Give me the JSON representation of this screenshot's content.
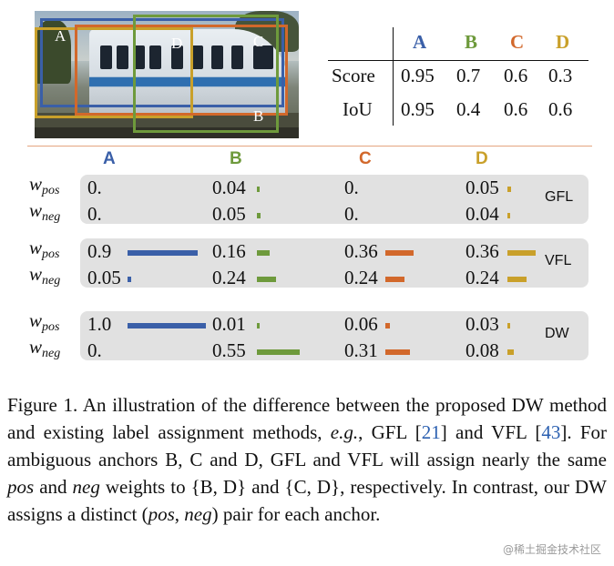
{
  "colors": {
    "A": "#3a5fa8",
    "B": "#6e9a3c",
    "C": "#d2682b",
    "D": "#c9a02a",
    "divider": "#e4a57f",
    "panel": "#e1e1e1",
    "ref": "#2a5fb0"
  },
  "anchors": [
    "A",
    "B",
    "C",
    "D"
  ],
  "table": {
    "rows": [
      {
        "label": "Score",
        "values": [
          "0.95",
          "0.7",
          "0.6",
          "0.3"
        ]
      },
      {
        "label": "IoU",
        "values": [
          "0.95",
          "0.4",
          "0.6",
          "0.6"
        ]
      }
    ]
  },
  "weight_labels": {
    "w": "w",
    "pos": "pos",
    "neg": "neg"
  },
  "methods": [
    {
      "name": "GFL",
      "pos": [
        "0.",
        "0.04",
        "0.",
        "0.05"
      ],
      "neg": [
        "0.",
        "0.05",
        "0.",
        "0.04"
      ],
      "pos_values": [
        0,
        0.04,
        0,
        0.05
      ],
      "neg_values": [
        0,
        0.05,
        0,
        0.04
      ]
    },
    {
      "name": "VFL",
      "pos": [
        "0.9",
        "0.16",
        "0.36",
        "0.36"
      ],
      "neg": [
        "0.05",
        "0.24",
        "0.24",
        "0.24"
      ],
      "pos_values": [
        0.9,
        0.16,
        0.36,
        0.36
      ],
      "neg_values": [
        0.05,
        0.24,
        0.24,
        0.24
      ]
    },
    {
      "name": "DW",
      "pos": [
        "1.0",
        "0.01",
        "0.06",
        "0.03"
      ],
      "neg": [
        "0.",
        "0.55",
        "0.31",
        "0.08"
      ],
      "pos_values": [
        1.0,
        0.01,
        0.06,
        0.03
      ],
      "neg_values": [
        0,
        0.55,
        0.31,
        0.08
      ]
    }
  ],
  "caption": {
    "p1": "Figure 1.  An illustration of the difference between the proposed DW method and existing label assignment methods, ",
    "eg": "e.g.",
    "p2": ", GFL [",
    "ref1": "21",
    "p3": "] and VFL [",
    "ref2": "43",
    "p4": "]. For ambiguous anchors B, C and D, GFL and VFL will assign nearly the same ",
    "pos": "pos",
    "p5": " and ",
    "neg": "neg",
    "p6": " weights to {B, D} and {C, D}, respectively. In contrast, our DW assigns a distinct (",
    "pos2": "pos",
    "p7": ", ",
    "neg2": "neg",
    "p8": ") pair for each anchor."
  },
  "watermark": "@稀土掘金技术社区"
}
